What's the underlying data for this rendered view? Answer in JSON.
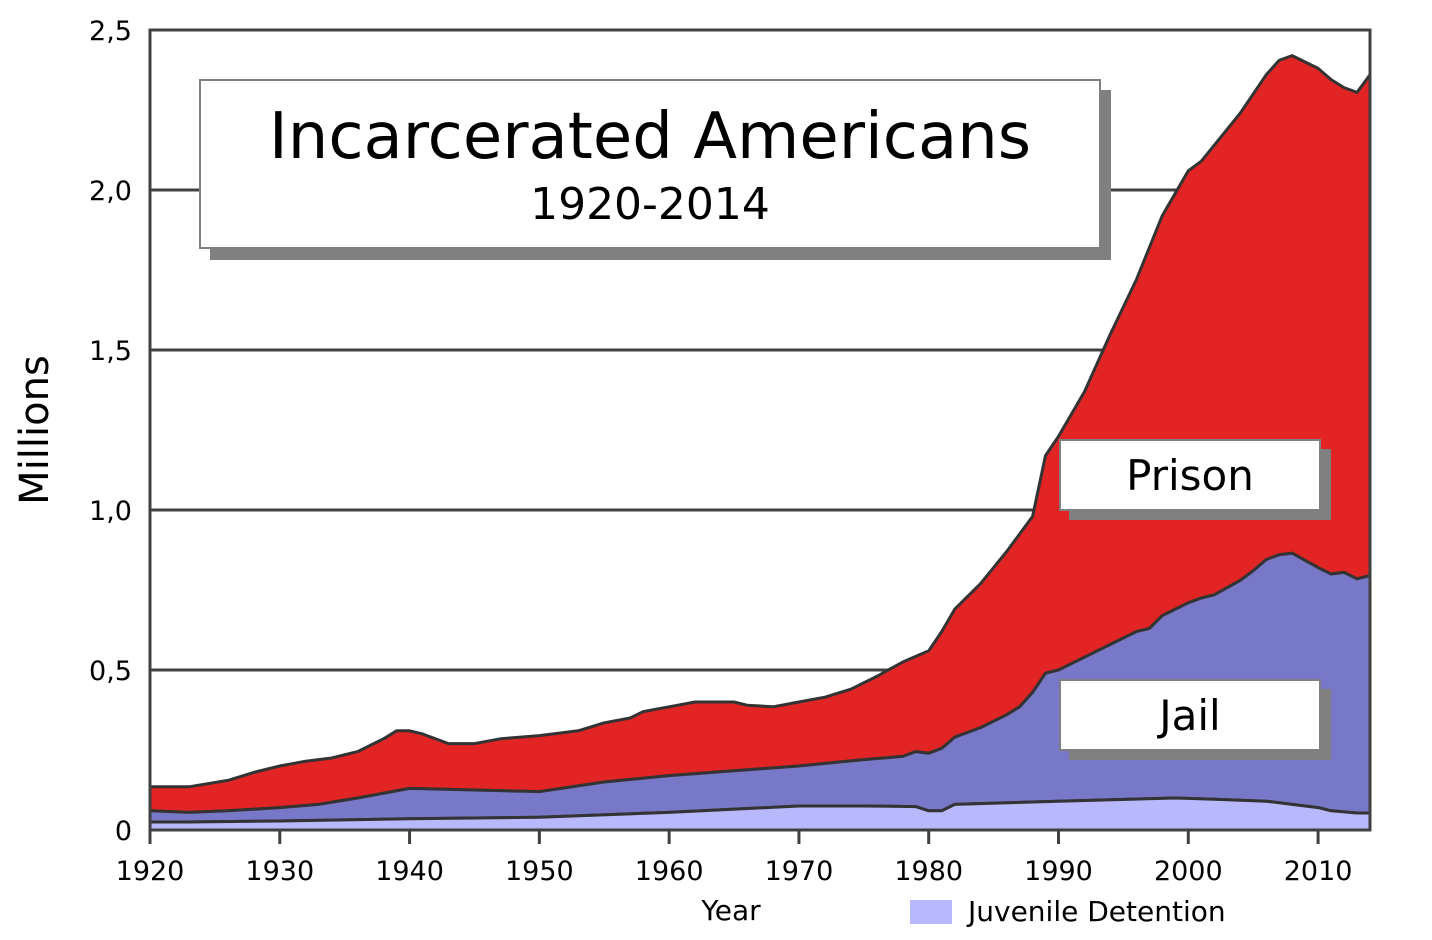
{
  "chart_data": {
    "type": "area",
    "stacked": true,
    "title": "Incarcerated Americans",
    "subtitle": "1920-2014",
    "xlabel": "Year",
    "ylabel": "Millions",
    "xlim": [
      1920,
      2014
    ],
    "ylim": [
      0,
      2.5
    ],
    "grid": true,
    "x_ticks": [
      {
        "value": 1920,
        "label": "1920"
      },
      {
        "value": 1930,
        "label": "1930"
      },
      {
        "value": 1940,
        "label": "1940"
      },
      {
        "value": 1950,
        "label": "1950"
      },
      {
        "value": 1960,
        "label": "1960"
      },
      {
        "value": 1970,
        "label": "1970"
      },
      {
        "value": 1980,
        "label": "1980"
      },
      {
        "value": 1990,
        "label": "1990"
      },
      {
        "value": 2000,
        "label": "2000"
      },
      {
        "value": 2010,
        "label": "2010"
      }
    ],
    "y_ticks": [
      {
        "value": 0,
        "label": "0"
      },
      {
        "value": 0.5,
        "label": "0,5"
      },
      {
        "value": 1.0,
        "label": "1,0"
      },
      {
        "value": 1.5,
        "label": "1,5"
      },
      {
        "value": 2.0,
        "label": "2,0"
      },
      {
        "value": 2.5,
        "label": "2,5"
      }
    ],
    "note": "Series values are cumulative (stacked) totals in millions, estimated from the plotted boundaries.",
    "series": [
      {
        "name": "Juvenile Detention",
        "color": "#b8b8ff",
        "x": [
          1920,
          1923,
          1930,
          1940,
          1950,
          1960,
          1970,
          1975,
          1979,
          1980,
          1981,
          1982,
          1990,
          1999,
          2002,
          2006,
          2010,
          2011,
          2013,
          2014
        ],
        "cumulative": [
          0.025,
          0.025,
          0.028,
          0.035,
          0.04,
          0.055,
          0.075,
          0.075,
          0.073,
          0.06,
          0.06,
          0.08,
          0.09,
          0.1,
          0.096,
          0.09,
          0.07,
          0.06,
          0.053,
          0.053
        ]
      },
      {
        "name": "Jail",
        "color": "#7878c8",
        "x": [
          1920,
          1923,
          1926,
          1930,
          1933,
          1936,
          1940,
          1945,
          1950,
          1955,
          1960,
          1965,
          1970,
          1975,
          1978,
          1979,
          1980,
          1981,
          1982,
          1984,
          1986,
          1987,
          1988,
          1989,
          1990,
          1992,
          1994,
          1996,
          1997,
          1998,
          2000,
          2001,
          2002,
          2004,
          2005,
          2006,
          2007,
          2008,
          2010,
          2011,
          2012,
          2013,
          2014
        ],
        "cumulative": [
          0.06,
          0.055,
          0.06,
          0.07,
          0.08,
          0.1,
          0.13,
          0.125,
          0.12,
          0.15,
          0.17,
          0.185,
          0.2,
          0.22,
          0.23,
          0.245,
          0.24,
          0.255,
          0.29,
          0.32,
          0.36,
          0.385,
          0.43,
          0.49,
          0.5,
          0.54,
          0.58,
          0.62,
          0.63,
          0.67,
          0.71,
          0.725,
          0.735,
          0.78,
          0.81,
          0.845,
          0.86,
          0.865,
          0.82,
          0.8,
          0.805,
          0.785,
          0.795
        ]
      },
      {
        "name": "Prison",
        "color": "#e32424",
        "x": [
          1920,
          1923,
          1926,
          1928,
          1930,
          1932,
          1934,
          1936,
          1938,
          1939,
          1940,
          1941,
          1943,
          1945,
          1947,
          1950,
          1953,
          1955,
          1957,
          1958,
          1960,
          1962,
          1965,
          1966,
          1968,
          1970,
          1972,
          1974,
          1976,
          1978,
          1980,
          1981,
          1982,
          1984,
          1986,
          1988,
          1989,
          1990,
          1992,
          1994,
          1996,
          1998,
          2000,
          2001,
          2002,
          2004,
          2006,
          2007,
          2008,
          2009,
          2010,
          2011,
          2012,
          2013,
          2014
        ],
        "cumulative": [
          0.135,
          0.135,
          0.155,
          0.18,
          0.2,
          0.215,
          0.225,
          0.245,
          0.285,
          0.31,
          0.31,
          0.3,
          0.27,
          0.27,
          0.285,
          0.295,
          0.31,
          0.335,
          0.35,
          0.37,
          0.385,
          0.4,
          0.4,
          0.39,
          0.385,
          0.4,
          0.415,
          0.44,
          0.48,
          0.525,
          0.56,
          0.62,
          0.69,
          0.77,
          0.87,
          0.98,
          1.17,
          1.23,
          1.37,
          1.55,
          1.72,
          1.92,
          2.06,
          2.09,
          2.14,
          2.24,
          2.36,
          2.405,
          2.42,
          2.4,
          2.38,
          2.345,
          2.32,
          2.305,
          2.36
        ]
      }
    ],
    "annotations": [
      {
        "text": "Prison",
        "series": "Prison"
      },
      {
        "text": "Jail",
        "series": "Jail"
      }
    ],
    "legend": [
      {
        "label": "Juvenile Detention",
        "color": "#b8b8ff",
        "position": "bottom-right"
      }
    ]
  }
}
